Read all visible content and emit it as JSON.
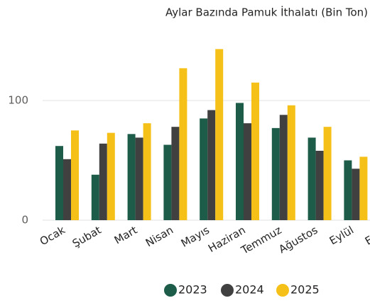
{
  "chart_data": {
    "type": "bar",
    "title": "Aylar Bazında Pamuk İthalatı (Bin Ton)",
    "categories": [
      "Ocak",
      "Şubat",
      "Mart",
      "Nisan",
      "Mayıs",
      "Haziran",
      "Temmuz",
      "Ağustos",
      "Eylül",
      "Ekim"
    ],
    "series": [
      {
        "name": "2023",
        "color": "#1e5c4a",
        "values": [
          62,
          38,
          72,
          63,
          85,
          98,
          77,
          69,
          50,
          null
        ]
      },
      {
        "name": "2024",
        "color": "#404040",
        "values": [
          51,
          64,
          69,
          78,
          92,
          81,
          88,
          58,
          43,
          null
        ]
      },
      {
        "name": "2025",
        "color": "#f5c018",
        "values": [
          75,
          73,
          81,
          127,
          143,
          115,
          96,
          78,
          53,
          null
        ]
      }
    ],
    "ylim": [
      0,
      150
    ],
    "yticks": [
      0,
      100
    ],
    "grid": true
  }
}
